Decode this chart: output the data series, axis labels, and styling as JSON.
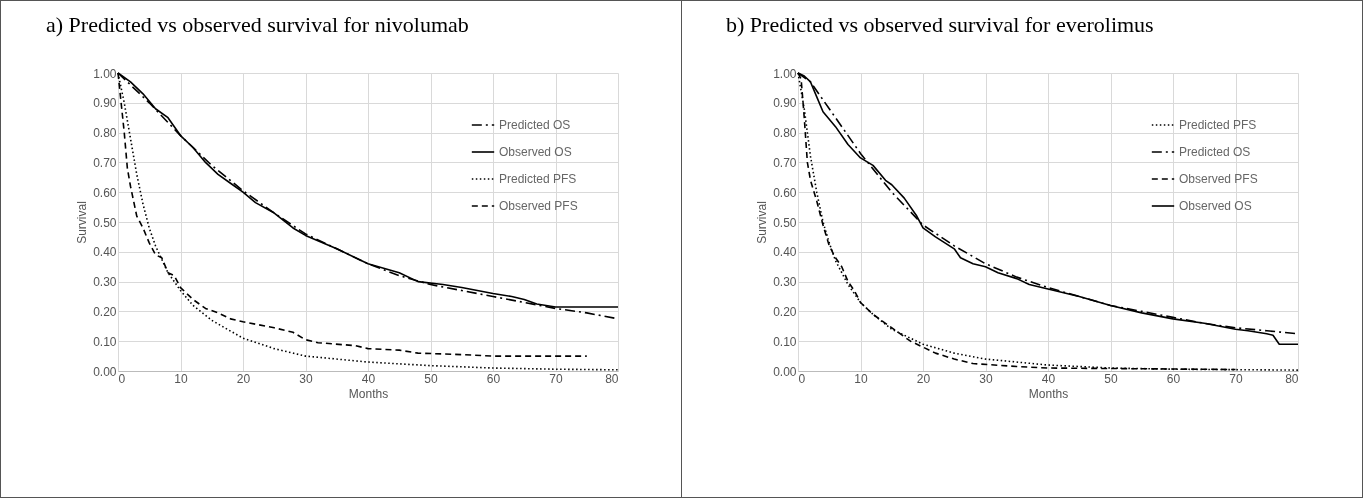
{
  "chart_data": [
    {
      "type": "line",
      "title": "a) Predicted vs observed survival for nivolumab",
      "xlabel": "Months",
      "ylabel": "Survival",
      "xlim": [
        0,
        80
      ],
      "xticks": [
        0,
        10,
        20,
        30,
        40,
        50,
        60,
        70,
        80
      ],
      "ylim": [
        0,
        1
      ],
      "yticks": [
        {
          "value": 0,
          "label": "0.00"
        },
        {
          "value": 0.1,
          "label": "0.10"
        },
        {
          "value": 0.2,
          "label": "0.20"
        },
        {
          "value": 0.3,
          "label": "0.30"
        },
        {
          "value": 0.4,
          "label": "0.40"
        },
        {
          "value": 0.5,
          "label": "0.50"
        },
        {
          "value": 0.6,
          "label": "0.60"
        },
        {
          "value": 0.7,
          "label": "0.70"
        },
        {
          "value": 0.8,
          "label": "0.80"
        },
        {
          "value": 0.9,
          "label": "0.90"
        },
        {
          "value": 1,
          "label": "1.00"
        }
      ],
      "grid": true,
      "legend": "top right",
      "marker": "none",
      "series": [
        {
          "name": "Predicted OS",
          "color": "#000000",
          "line_style": "dashdot",
          "x": [
            0,
            5,
            10,
            15,
            20,
            25,
            30,
            35,
            40,
            45,
            50,
            55,
            60,
            65,
            70,
            75,
            80
          ],
          "values": [
            1,
            0.9,
            0.79,
            0.69,
            0.605,
            0.53,
            0.46,
            0.41,
            0.36,
            0.32,
            0.29,
            0.27,
            0.25,
            0.23,
            0.21,
            0.195,
            0.175
          ]
        },
        {
          "name": "Observed OS",
          "color": "#000000",
          "line_style": "solid",
          "x": [
            0,
            2,
            4,
            6,
            8,
            10,
            12,
            14,
            16,
            18,
            20,
            22,
            25,
            28,
            30,
            35,
            40,
            45,
            48,
            52,
            55,
            60,
            63,
            65,
            67,
            70,
            80
          ],
          "values": [
            1,
            0.97,
            0.93,
            0.88,
            0.85,
            0.79,
            0.75,
            0.7,
            0.66,
            0.63,
            0.6,
            0.565,
            0.53,
            0.48,
            0.455,
            0.41,
            0.36,
            0.33,
            0.3,
            0.29,
            0.28,
            0.26,
            0.25,
            0.24,
            0.225,
            0.215,
            0.215
          ]
        },
        {
          "name": "Predicted PFS",
          "color": "#000000",
          "line_style": "dotted",
          "x": [
            0,
            1,
            2,
            3,
            4,
            5,
            6,
            8,
            10,
            12,
            15,
            20,
            25,
            30,
            40,
            50,
            60,
            70,
            80
          ],
          "values": [
            1,
            0.9,
            0.78,
            0.66,
            0.56,
            0.48,
            0.42,
            0.33,
            0.27,
            0.22,
            0.17,
            0.11,
            0.075,
            0.05,
            0.03,
            0.018,
            0.01,
            0.006,
            0.004
          ]
        },
        {
          "name": "Observed PFS",
          "color": "#000000",
          "line_style": "dashed",
          "x": [
            0,
            1,
            1.5,
            2,
            3,
            4,
            5,
            6,
            7,
            8,
            9,
            10,
            12,
            14,
            16,
            18,
            20,
            25,
            28,
            30,
            32,
            38,
            40,
            45,
            48,
            55,
            60,
            75
          ],
          "values": [
            1,
            0.8,
            0.68,
            0.62,
            0.52,
            0.48,
            0.43,
            0.39,
            0.38,
            0.33,
            0.32,
            0.28,
            0.24,
            0.21,
            0.195,
            0.175,
            0.165,
            0.145,
            0.13,
            0.105,
            0.095,
            0.085,
            0.075,
            0.07,
            0.06,
            0.055,
            0.05,
            0.05
          ]
        }
      ]
    },
    {
      "type": "line",
      "title": "b) Predicted vs observed survival for everolimus",
      "xlabel": "Months",
      "ylabel": "Survival",
      "xlim": [
        0,
        80
      ],
      "xticks": [
        0,
        10,
        20,
        30,
        40,
        50,
        60,
        70,
        80
      ],
      "ylim": [
        0,
        1
      ],
      "yticks": [
        {
          "value": 0,
          "label": "0.00"
        },
        {
          "value": 0.1,
          "label": "0.10"
        },
        {
          "value": 0.2,
          "label": "0.20"
        },
        {
          "value": 0.3,
          "label": "0.30"
        },
        {
          "value": 0.4,
          "label": "0.40"
        },
        {
          "value": 0.5,
          "label": "0.50"
        },
        {
          "value": 0.6,
          "label": "0.60"
        },
        {
          "value": 0.7,
          "label": "0.70"
        },
        {
          "value": 0.8,
          "label": "0.80"
        },
        {
          "value": 0.9,
          "label": "0.90"
        },
        {
          "value": 1,
          "label": "1.00"
        }
      ],
      "grid": true,
      "legend": "top right",
      "marker": "none",
      "series": [
        {
          "name": "Predicted PFS",
          "color": "#000000",
          "line_style": "dotted",
          "x": [
            0,
            1,
            2,
            3,
            4,
            5,
            6,
            8,
            10,
            12,
            15,
            20,
            25,
            30,
            40,
            50,
            60,
            80
          ],
          "values": [
            1,
            0.88,
            0.72,
            0.6,
            0.5,
            0.43,
            0.37,
            0.29,
            0.23,
            0.19,
            0.14,
            0.09,
            0.06,
            0.04,
            0.02,
            0.01,
            0.006,
            0.003
          ]
        },
        {
          "name": "Predicted OS",
          "color": "#000000",
          "line_style": "dashdot",
          "x": [
            0,
            2,
            5,
            10,
            15,
            20,
            25,
            30,
            35,
            40,
            45,
            50,
            55,
            60,
            65,
            70,
            75,
            80
          ],
          "values": [
            1,
            0.97,
            0.88,
            0.73,
            0.6,
            0.49,
            0.42,
            0.36,
            0.315,
            0.28,
            0.25,
            0.22,
            0.2,
            0.18,
            0.16,
            0.145,
            0.135,
            0.125
          ]
        },
        {
          "name": "Observed PFS",
          "color": "#000000",
          "line_style": "dashed",
          "x": [
            0,
            0.5,
            1,
            1.5,
            2,
            3,
            4,
            5,
            6,
            7,
            8,
            9,
            10,
            12,
            14,
            16,
            18,
            20,
            22,
            25,
            28,
            35,
            40,
            70
          ],
          "values": [
            1,
            0.98,
            0.85,
            0.7,
            0.64,
            0.57,
            0.49,
            0.42,
            0.38,
            0.35,
            0.3,
            0.27,
            0.23,
            0.19,
            0.16,
            0.13,
            0.1,
            0.08,
            0.06,
            0.04,
            0.025,
            0.015,
            0.01,
            0.005
          ]
        },
        {
          "name": "Observed OS",
          "color": "#000000",
          "line_style": "solid",
          "x": [
            0,
            1,
            2,
            3,
            4,
            6,
            8,
            10,
            12,
            14,
            15,
            17,
            19,
            20,
            22,
            25,
            26,
            28,
            30,
            32,
            35,
            37,
            40,
            45,
            50,
            55,
            60,
            65,
            70,
            72,
            75,
            76,
            77,
            80
          ],
          "values": [
            1,
            0.99,
            0.97,
            0.92,
            0.87,
            0.82,
            0.76,
            0.715,
            0.69,
            0.64,
            0.625,
            0.58,
            0.52,
            0.48,
            0.45,
            0.41,
            0.38,
            0.36,
            0.35,
            0.33,
            0.31,
            0.29,
            0.275,
            0.25,
            0.22,
            0.195,
            0.175,
            0.16,
            0.14,
            0.135,
            0.125,
            0.12,
            0.09,
            0.09
          ]
        }
      ]
    }
  ]
}
